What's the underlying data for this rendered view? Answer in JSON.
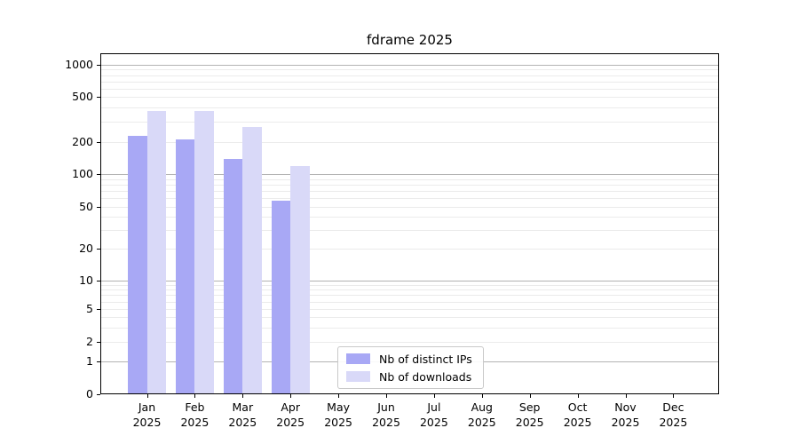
{
  "chart_data": {
    "type": "bar",
    "title": "fdrame 2025",
    "categories": [
      "Jan",
      "Feb",
      "Mar",
      "Apr",
      "May",
      "Jun",
      "Jul",
      "Aug",
      "Sep",
      "Oct",
      "Nov",
      "Dec"
    ],
    "x_year_label": "2025",
    "series": [
      {
        "name": "Nb of distinct IPs",
        "color": "#a8a8f5",
        "values": [
          225,
          212,
          140,
          57,
          0,
          0,
          0,
          0,
          0,
          0,
          0,
          0
        ]
      },
      {
        "name": "Nb of downloads",
        "color": "#d9d9f8",
        "values": [
          375,
          375,
          270,
          120,
          0,
          0,
          0,
          0,
          0,
          0,
          0,
          0
        ]
      }
    ],
    "y_ticks": [
      0,
      1,
      2,
      5,
      10,
      20,
      50,
      100,
      200,
      500,
      1000
    ],
    "yscale": "symlog",
    "ylim": [
      0,
      1300
    ],
    "grid": "both",
    "legend_position": "lower-center-inside"
  },
  "colors": {
    "grid_minor": "#ebebeb",
    "grid_major": "#b3b3b3",
    "spine": "#000000",
    "text": "#000000",
    "legend_border": "#c9c9c9"
  }
}
